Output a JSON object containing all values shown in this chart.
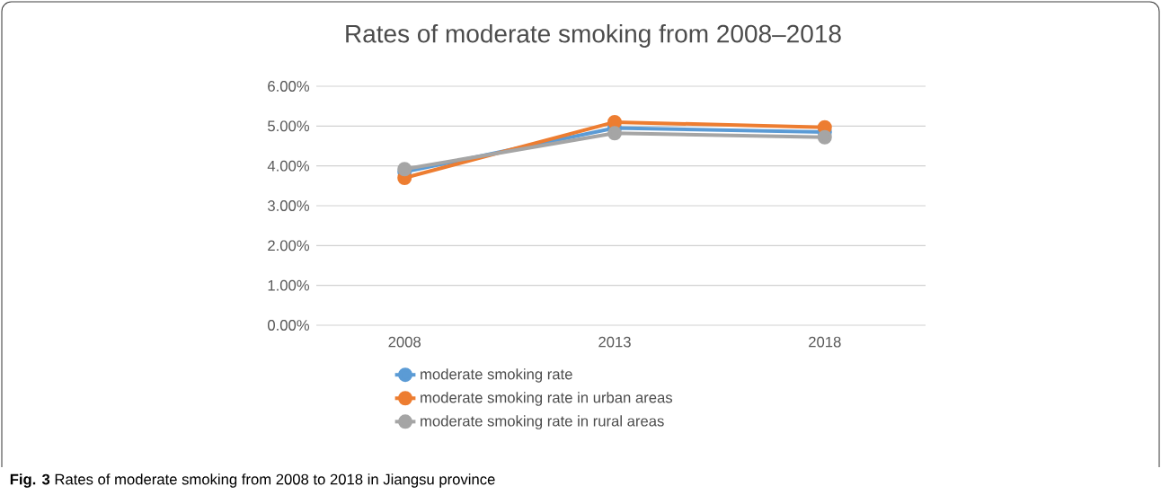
{
  "chart_data": {
    "type": "line",
    "title": "Rates of moderate smoking from 2008–2018",
    "categories": [
      "2008",
      "2013",
      "2018"
    ],
    "series": [
      {
        "name": "moderate smoking rate",
        "color": "#5b9bd5",
        "values": [
          3.85,
          4.95,
          4.85
        ]
      },
      {
        "name": "moderate smoking rate in urban areas",
        "color": "#ed7d31",
        "values": [
          3.7,
          5.1,
          4.97
        ]
      },
      {
        "name": "moderate smoking rate in rural areas",
        "color": "#a5a5a5",
        "values": [
          3.92,
          4.82,
          4.72
        ]
      }
    ],
    "ylim": [
      0,
      6
    ],
    "yticks": [
      {
        "value": 0,
        "label": "0.00%"
      },
      {
        "value": 1,
        "label": "1.00%"
      },
      {
        "value": 2,
        "label": "2.00%"
      },
      {
        "value": 3,
        "label": "3.00%"
      },
      {
        "value": 4,
        "label": "4.00%"
      },
      {
        "value": 5,
        "label": "5.00%"
      },
      {
        "value": 6,
        "label": "6.00%"
      }
    ],
    "grid": "y",
    "legend": "bottom",
    "marker": "circle",
    "line_style": "solid",
    "annotations": [
      "**Fig. 3** Rates of moderate smoking from 2008 to 2018 in Jiangsu province"
    ]
  }
}
